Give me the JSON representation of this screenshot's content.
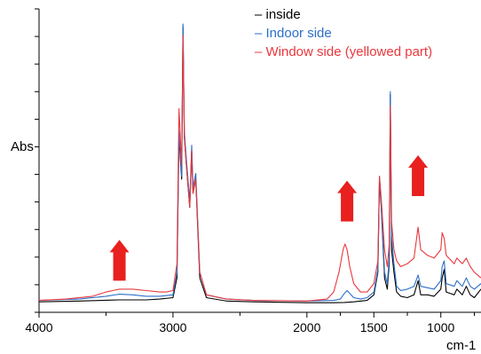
{
  "chart_data": {
    "type": "line",
    "title": "",
    "xlabel": "cm-1",
    "ylabel": "Abs",
    "xlim": [
      4000,
      700
    ],
    "ylim": [
      0,
      1
    ],
    "x_reversed": true,
    "x_ticks": [
      4000,
      3000,
      2000,
      1500,
      1000
    ],
    "x_tick_labels": [
      "4000",
      "3000",
      "2000",
      "1500",
      "1000"
    ],
    "legend_position": "top-right",
    "legend_prefix": "–",
    "series": [
      {
        "name": "inside",
        "color": "#000000",
        "points": [
          [
            4000,
            0.015
          ],
          [
            3700,
            0.018
          ],
          [
            3400,
            0.022
          ],
          [
            3200,
            0.022
          ],
          [
            3100,
            0.025
          ],
          [
            3000,
            0.03
          ],
          [
            2970,
            0.1
          ],
          [
            2955,
            0.6
          ],
          [
            2935,
            0.45
          ],
          [
            2925,
            0.99
          ],
          [
            2915,
            0.6
          ],
          [
            2900,
            0.5
          ],
          [
            2875,
            0.35
          ],
          [
            2860,
            0.55
          ],
          [
            2850,
            0.4
          ],
          [
            2830,
            0.45
          ],
          [
            2800,
            0.1
          ],
          [
            2750,
            0.03
          ],
          [
            2600,
            0.018
          ],
          [
            2400,
            0.015
          ],
          [
            2000,
            0.012
          ],
          [
            1800,
            0.012
          ],
          [
            1720,
            0.013
          ],
          [
            1650,
            0.015
          ],
          [
            1550,
            0.02
          ],
          [
            1500,
            0.04
          ],
          [
            1470,
            0.12
          ],
          [
            1458,
            0.45
          ],
          [
            1445,
            0.35
          ],
          [
            1420,
            0.1
          ],
          [
            1400,
            0.06
          ],
          [
            1385,
            0.15
          ],
          [
            1377,
            0.75
          ],
          [
            1368,
            0.2
          ],
          [
            1350,
            0.12
          ],
          [
            1330,
            0.05
          ],
          [
            1300,
            0.035
          ],
          [
            1250,
            0.03
          ],
          [
            1200,
            0.04
          ],
          [
            1170,
            0.09
          ],
          [
            1150,
            0.04
          ],
          [
            1100,
            0.04
          ],
          [
            1050,
            0.035
          ],
          [
            1000,
            0.06
          ],
          [
            990,
            0.1
          ],
          [
            975,
            0.13
          ],
          [
            960,
            0.05
          ],
          [
            900,
            0.04
          ],
          [
            880,
            0.06
          ],
          [
            840,
            0.04
          ],
          [
            810,
            0.07
          ],
          [
            780,
            0.04
          ],
          [
            750,
            0.03
          ],
          [
            700,
            0.06
          ]
        ]
      },
      {
        "name": "Indoor side",
        "color": "#2a6fc9",
        "points": [
          [
            4000,
            0.02
          ],
          [
            3700,
            0.025
          ],
          [
            3500,
            0.035
          ],
          [
            3400,
            0.042
          ],
          [
            3300,
            0.04
          ],
          [
            3200,
            0.035
          ],
          [
            3100,
            0.035
          ],
          [
            3000,
            0.04
          ],
          [
            2970,
            0.12
          ],
          [
            2955,
            0.62
          ],
          [
            2935,
            0.46
          ],
          [
            2925,
            1.0
          ],
          [
            2915,
            0.62
          ],
          [
            2900,
            0.52
          ],
          [
            2875,
            0.37
          ],
          [
            2860,
            0.57
          ],
          [
            2850,
            0.42
          ],
          [
            2830,
            0.47
          ],
          [
            2800,
            0.12
          ],
          [
            2750,
            0.04
          ],
          [
            2600,
            0.025
          ],
          [
            2400,
            0.02
          ],
          [
            2000,
            0.018
          ],
          [
            1800,
            0.02
          ],
          [
            1750,
            0.025
          ],
          [
            1720,
            0.045
          ],
          [
            1700,
            0.055
          ],
          [
            1680,
            0.045
          ],
          [
            1650,
            0.03
          ],
          [
            1600,
            0.025
          ],
          [
            1550,
            0.03
          ],
          [
            1500,
            0.05
          ],
          [
            1470,
            0.13
          ],
          [
            1458,
            0.46
          ],
          [
            1445,
            0.36
          ],
          [
            1420,
            0.12
          ],
          [
            1400,
            0.08
          ],
          [
            1385,
            0.17
          ],
          [
            1377,
            0.76
          ],
          [
            1368,
            0.25
          ],
          [
            1350,
            0.15
          ],
          [
            1330,
            0.07
          ],
          [
            1300,
            0.055
          ],
          [
            1250,
            0.06
          ],
          [
            1200,
            0.07
          ],
          [
            1170,
            0.11
          ],
          [
            1150,
            0.07
          ],
          [
            1100,
            0.065
          ],
          [
            1050,
            0.06
          ],
          [
            1000,
            0.09
          ],
          [
            990,
            0.14
          ],
          [
            975,
            0.16
          ],
          [
            960,
            0.08
          ],
          [
            900,
            0.07
          ],
          [
            880,
            0.09
          ],
          [
            840,
            0.07
          ],
          [
            810,
            0.1
          ],
          [
            780,
            0.07
          ],
          [
            750,
            0.06
          ],
          [
            700,
            0.08
          ]
        ]
      },
      {
        "name": "Window side (yellowed part)",
        "color": "#e8383d",
        "points": [
          [
            4000,
            0.02
          ],
          [
            3800,
            0.025
          ],
          [
            3600,
            0.035
          ],
          [
            3500,
            0.05
          ],
          [
            3400,
            0.06
          ],
          [
            3300,
            0.06
          ],
          [
            3200,
            0.055
          ],
          [
            3100,
            0.05
          ],
          [
            3050,
            0.05
          ],
          [
            3000,
            0.055
          ],
          [
            2970,
            0.15
          ],
          [
            2955,
            0.7
          ],
          [
            2935,
            0.5
          ],
          [
            2925,
            0.96
          ],
          [
            2915,
            0.6
          ],
          [
            2900,
            0.5
          ],
          [
            2875,
            0.35
          ],
          [
            2860,
            0.55
          ],
          [
            2850,
            0.4
          ],
          [
            2830,
            0.45
          ],
          [
            2800,
            0.12
          ],
          [
            2750,
            0.04
          ],
          [
            2600,
            0.025
          ],
          [
            2400,
            0.02
          ],
          [
            2000,
            0.018
          ],
          [
            1850,
            0.025
          ],
          [
            1800,
            0.05
          ],
          [
            1760,
            0.12
          ],
          [
            1730,
            0.2
          ],
          [
            1715,
            0.22
          ],
          [
            1700,
            0.2
          ],
          [
            1680,
            0.14
          ],
          [
            1650,
            0.08
          ],
          [
            1600,
            0.05
          ],
          [
            1550,
            0.05
          ],
          [
            1500,
            0.08
          ],
          [
            1470,
            0.16
          ],
          [
            1458,
            0.46
          ],
          [
            1445,
            0.38
          ],
          [
            1420,
            0.2
          ],
          [
            1400,
            0.14
          ],
          [
            1385,
            0.22
          ],
          [
            1377,
            0.71
          ],
          [
            1368,
            0.3
          ],
          [
            1350,
            0.2
          ],
          [
            1330,
            0.16
          ],
          [
            1300,
            0.14
          ],
          [
            1250,
            0.15
          ],
          [
            1200,
            0.17
          ],
          [
            1170,
            0.28
          ],
          [
            1150,
            0.2
          ],
          [
            1100,
            0.18
          ],
          [
            1050,
            0.17
          ],
          [
            1000,
            0.2
          ],
          [
            990,
            0.26
          ],
          [
            975,
            0.24
          ],
          [
            960,
            0.18
          ],
          [
            900,
            0.15
          ],
          [
            880,
            0.17
          ],
          [
            840,
            0.15
          ],
          [
            810,
            0.17
          ],
          [
            780,
            0.14
          ],
          [
            750,
            0.12
          ],
          [
            700,
            0.1
          ]
        ]
      }
    ],
    "annotations": [
      {
        "kind": "arrow-up",
        "x": 3400,
        "color": "#e8201e"
      },
      {
        "kind": "arrow-up",
        "x": 1700,
        "color": "#e8201e"
      },
      {
        "kind": "arrow-up",
        "x": 1170,
        "color": "#e8201e"
      }
    ]
  }
}
